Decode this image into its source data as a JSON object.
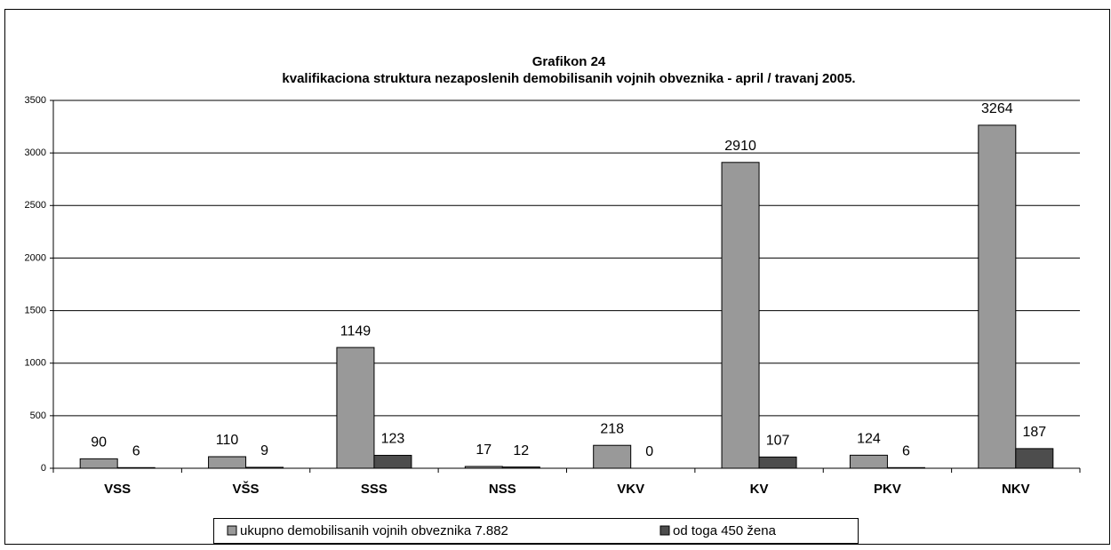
{
  "chart_data": {
    "type": "bar",
    "title": "Grafikon 24",
    "subtitle": "kvalifikaciona struktura nezaposlenih demobilisanih vojnih obveznika - april / travanj 2005.",
    "categories": [
      "VSS",
      "VŠS",
      "SSS",
      "NSS",
      "VKV",
      "KV",
      "PKV",
      "NKV"
    ],
    "series": [
      {
        "name": "ukupno demobilisanih vojnih obveznika 7.882",
        "color": "#999999",
        "values": [
          90,
          110,
          1149,
          17,
          218,
          2910,
          124,
          3264
        ]
      },
      {
        "name": "od toga 450 žena",
        "color": "#4d4d4d",
        "values": [
          6,
          9,
          123,
          12,
          0,
          107,
          6,
          187
        ]
      }
    ],
    "ylim": [
      0,
      3500
    ],
    "yticks": [
      0,
      500,
      1000,
      1500,
      2000,
      2500,
      3000,
      3500
    ],
    "grid": true
  }
}
